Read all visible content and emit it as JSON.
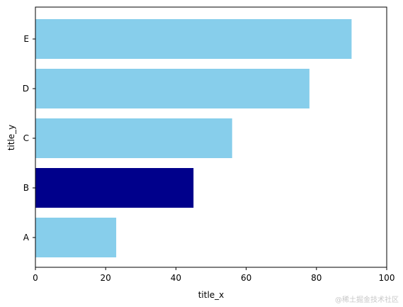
{
  "chart_data": {
    "type": "bar",
    "orientation": "horizontal",
    "categories": [
      "A",
      "B",
      "C",
      "D",
      "E"
    ],
    "values": [
      23,
      45,
      56,
      78,
      90
    ],
    "colors": [
      "#87ceeb",
      "#00008b",
      "#87ceeb",
      "#87ceeb",
      "#87ceeb"
    ],
    "highlight_category": "B",
    "xlabel": "title_x",
    "ylabel": "title_y",
    "xlim": [
      0,
      100
    ],
    "xticks": [
      0,
      20,
      40,
      60,
      80,
      100
    ],
    "grid": false
  },
  "watermark": "@稀土掘金技术社区"
}
